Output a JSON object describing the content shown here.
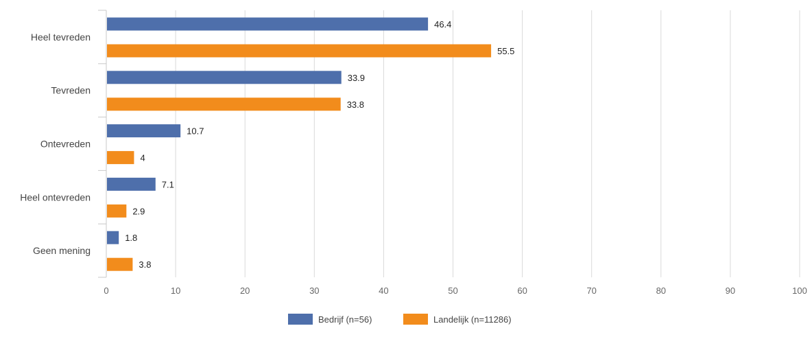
{
  "chart_data": {
    "type": "bar",
    "orientation": "horizontal",
    "categories": [
      "Heel tevreden",
      "Tevreden",
      "Ontevreden",
      "Heel ontevreden",
      "Geen mening"
    ],
    "series": [
      {
        "name": "Bedrijf (n=56)",
        "values": [
          46.4,
          33.9,
          10.7,
          7.1,
          1.8
        ],
        "color": "#4e6fab"
      },
      {
        "name": "Landelijk (n=11286)",
        "values": [
          55.5,
          33.8,
          4,
          2.9,
          3.8
        ],
        "color": "#f28c1c"
      }
    ],
    "xlim": [
      0,
      100
    ],
    "ticks": [
      0,
      10,
      20,
      30,
      40,
      50,
      60,
      70,
      80,
      90,
      100
    ],
    "grid": true,
    "legend_position": "bottom"
  }
}
